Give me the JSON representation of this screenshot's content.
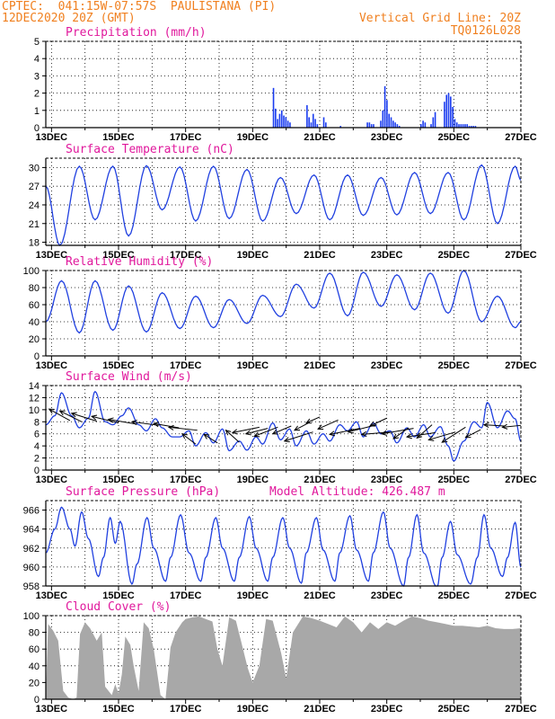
{
  "header": {
    "line1_left": "CPTEC:  041:15W-07:57S  PAULISTANA (PI)",
    "line2_left": "12DEC2020 20Z (GMT)",
    "line1_right": "Vertical Grid Line: 20Z",
    "line2_right": "TQ0126L028"
  },
  "colors": {
    "series": "#2040e0",
    "bar": "#1a3cf0",
    "cloud": "#a8a8a8",
    "title": "#e0189c",
    "header": "#f08020"
  },
  "x_axis": {
    "tick_labels": [
      "13DEC",
      "15DEC",
      "17DEC",
      "19DEC",
      "21DEC",
      "23DEC",
      "25DEC",
      "27DEC"
    ],
    "days_range": [
      12.83,
      27.0
    ]
  },
  "chart_data": [
    {
      "type": "bar",
      "title": "Precipitation (mm/h)",
      "ylim": [
        0,
        5
      ],
      "yticks": [
        "0",
        "1",
        "2",
        "3",
        "4",
        "5"
      ],
      "grid": true,
      "bursts": [
        {
          "x": 19.6,
          "values": [
            2.3,
            1.1,
            0.5,
            0.8,
            1.0,
            0.7,
            0.6,
            0.4,
            0.3
          ]
        },
        {
          "x": 20.6,
          "values": [
            1.3,
            0.6,
            0.3,
            0.8,
            0.5,
            0.2
          ]
        },
        {
          "x": 21.1,
          "values": [
            0.6,
            0.3
          ]
        },
        {
          "x": 21.6,
          "values": [
            0.1
          ]
        },
        {
          "x": 22.4,
          "values": [
            0.3,
            0.3,
            0.2,
            0.2
          ]
        },
        {
          "x": 22.8,
          "values": [
            0.4,
            1.0,
            2.4,
            1.6,
            0.8,
            0.6,
            0.4,
            0.3,
            0.2,
            0.1
          ]
        },
        {
          "x": 24.0,
          "values": [
            0.2,
            0.4,
            0.3
          ]
        },
        {
          "x": 24.3,
          "values": [
            0.2,
            0.6,
            0.9
          ]
        },
        {
          "x": 24.7,
          "values": [
            1.5,
            1.9,
            2.0,
            1.8,
            1.2,
            0.5,
            0.3,
            0.2,
            0.2,
            0.2,
            0.2,
            0.2,
            0.1,
            0.1,
            0.1,
            0.1
          ]
        }
      ]
    },
    {
      "type": "line",
      "title": "Surface Temperature (nC)",
      "ylim": [
        17.5,
        31.5
      ],
      "yticks": [
        "18",
        "21",
        "24",
        "27",
        "30"
      ],
      "grid": true,
      "extrema": [
        [
          12.83,
          27
        ],
        [
          13.25,
          17.5
        ],
        [
          13.83,
          30.2
        ],
        [
          14.3,
          21.6
        ],
        [
          14.83,
          30.2
        ],
        [
          15.3,
          19.0
        ],
        [
          15.83,
          30.3
        ],
        [
          16.3,
          23.2
        ],
        [
          16.83,
          30.1
        ],
        [
          17.3,
          21.4
        ],
        [
          17.83,
          30.2
        ],
        [
          18.3,
          21.8
        ],
        [
          18.83,
          29.7
        ],
        [
          19.3,
          21.4
        ],
        [
          19.83,
          28.4
        ],
        [
          20.3,
          22.6
        ],
        [
          20.83,
          28.8
        ],
        [
          21.3,
          21.6
        ],
        [
          21.83,
          28.8
        ],
        [
          22.3,
          22.3
        ],
        [
          22.83,
          28.4
        ],
        [
          23.3,
          22.4
        ],
        [
          23.83,
          29.2
        ],
        [
          24.3,
          22.6
        ],
        [
          24.83,
          29.2
        ],
        [
          25.3,
          21.6
        ],
        [
          25.83,
          30.4
        ],
        [
          26.3,
          21.0
        ],
        [
          26.83,
          30.2
        ],
        [
          27.0,
          28.0
        ]
      ]
    },
    {
      "type": "line",
      "title": "Relative Humidity (%)",
      "ylim": [
        0,
        100
      ],
      "yticks": [
        "0",
        "20",
        "40",
        "60",
        "80",
        "100"
      ],
      "grid": true,
      "extrema": [
        [
          12.83,
          40
        ],
        [
          13.3,
          88
        ],
        [
          13.83,
          27
        ],
        [
          14.3,
          88
        ],
        [
          14.83,
          30
        ],
        [
          15.3,
          82
        ],
        [
          15.83,
          28
        ],
        [
          16.3,
          74
        ],
        [
          16.83,
          32
        ],
        [
          17.3,
          70
        ],
        [
          17.83,
          33
        ],
        [
          18.3,
          66
        ],
        [
          18.83,
          38
        ],
        [
          19.3,
          71
        ],
        [
          19.83,
          46
        ],
        [
          20.3,
          84
        ],
        [
          20.83,
          56
        ],
        [
          21.3,
          97
        ],
        [
          21.83,
          47
        ],
        [
          22.3,
          98
        ],
        [
          22.83,
          58
        ],
        [
          23.3,
          95
        ],
        [
          23.83,
          54
        ],
        [
          24.3,
          97
        ],
        [
          24.83,
          50
        ],
        [
          25.3,
          100
        ],
        [
          25.83,
          40
        ],
        [
          26.3,
          70
        ],
        [
          26.83,
          33
        ],
        [
          27.0,
          40
        ]
      ]
    },
    {
      "type": "line",
      "title": "Surface Wind (m/s)",
      "ylim": [
        0,
        14
      ],
      "yticks": [
        "0",
        "2",
        "4",
        "6",
        "8",
        "10",
        "12",
        "14"
      ],
      "grid": true,
      "extrema": [
        [
          12.83,
          7.5
        ],
        [
          13.1,
          9
        ],
        [
          13.3,
          12.8
        ],
        [
          13.6,
          9
        ],
        [
          13.83,
          7
        ],
        [
          14.1,
          8.6
        ],
        [
          14.3,
          13
        ],
        [
          14.6,
          8
        ],
        [
          14.83,
          7.5
        ],
        [
          15.1,
          9
        ],
        [
          15.3,
          10.3
        ],
        [
          15.6,
          7.5
        ],
        [
          15.83,
          6.5
        ],
        [
          16.1,
          8.5
        ],
        [
          16.3,
          7
        ],
        [
          16.6,
          5.5
        ],
        [
          16.83,
          5.5
        ],
        [
          17.1,
          6.5
        ],
        [
          17.3,
          4
        ],
        [
          17.6,
          6.2
        ],
        [
          17.83,
          4.5
        ],
        [
          18.1,
          6.8
        ],
        [
          18.3,
          3.2
        ],
        [
          18.6,
          4.8
        ],
        [
          18.83,
          3.3
        ],
        [
          19.1,
          5.5
        ],
        [
          19.3,
          4.3
        ],
        [
          19.6,
          7.8
        ],
        [
          19.83,
          5
        ],
        [
          20.1,
          6.8
        ],
        [
          20.3,
          4
        ],
        [
          20.6,
          6.5
        ],
        [
          20.83,
          4.3
        ],
        [
          21.1,
          6
        ],
        [
          21.3,
          4.8
        ],
        [
          21.6,
          7.5
        ],
        [
          21.83,
          6.5
        ],
        [
          22.1,
          8
        ],
        [
          22.3,
          5.5
        ],
        [
          22.6,
          7.8
        ],
        [
          22.83,
          6
        ],
        [
          23.1,
          6.5
        ],
        [
          23.3,
          4.5
        ],
        [
          23.6,
          7
        ],
        [
          23.83,
          5.5
        ],
        [
          24.1,
          7.5
        ],
        [
          24.3,
          5.5
        ],
        [
          24.6,
          7.2
        ],
        [
          24.83,
          4
        ],
        [
          25.0,
          1.5
        ],
        [
          25.3,
          4.8
        ],
        [
          25.6,
          8
        ],
        [
          25.83,
          7
        ],
        [
          26.0,
          11.2
        ],
        [
          26.3,
          7
        ],
        [
          26.6,
          9.8
        ],
        [
          26.83,
          8.5
        ],
        [
          27.0,
          4.8
        ]
      ],
      "arrows": [
        [
          12.93,
          10.1,
          13.55,
          8.2
        ],
        [
          13.25,
          9.8,
          13.9,
          8.0
        ],
        [
          13.6,
          9.4,
          14.35,
          8.1
        ],
        [
          14.2,
          8.9,
          15.0,
          7.8
        ],
        [
          14.7,
          8.4,
          15.55,
          7.6
        ],
        [
          15.4,
          8.0,
          16.2,
          7.4
        ],
        [
          16.05,
          7.7,
          16.8,
          7.0
        ],
        [
          16.5,
          7.1,
          17.35,
          6.6
        ],
        [
          16.9,
          6.0,
          17.3,
          4.3
        ],
        [
          17.55,
          5.9,
          17.95,
          4.5
        ],
        [
          18.2,
          6.6,
          18.6,
          4.6
        ],
        [
          18.4,
          6.2,
          19.2,
          7.1
        ],
        [
          18.8,
          6.0,
          19.45,
          6.9
        ],
        [
          19.05,
          5.6,
          19.75,
          7.1
        ],
        [
          19.6,
          6.0,
          20.15,
          7.3
        ],
        [
          19.95,
          4.8,
          20.8,
          6.3
        ],
        [
          20.25,
          6.6,
          20.7,
          7.9
        ],
        [
          20.6,
          7.8,
          21.0,
          8.8
        ],
        [
          20.95,
          6.8,
          21.55,
          8.3
        ],
        [
          21.3,
          5.9,
          22.2,
          6.9
        ],
        [
          21.85,
          6.3,
          22.7,
          7.5
        ],
        [
          22.25,
          5.9,
          23.1,
          6.3
        ],
        [
          22.5,
          7.3,
          23.0,
          8.6
        ],
        [
          22.85,
          6.0,
          23.8,
          6.9
        ],
        [
          23.2,
          5.2,
          23.65,
          7.0
        ],
        [
          23.6,
          5.5,
          24.45,
          6.2
        ],
        [
          23.9,
          5.3,
          24.35,
          7.5
        ],
        [
          24.25,
          5.0,
          25.05,
          6.3
        ],
        [
          24.65,
          4.6,
          25.35,
          7.1
        ],
        [
          25.35,
          5.4,
          25.8,
          6.7
        ],
        [
          25.9,
          7.5,
          26.5,
          7.3
        ],
        [
          26.45,
          7.1,
          27.0,
          7.4
        ]
      ]
    },
    {
      "type": "line",
      "title": "Surface Pressure (hPa)",
      "annotation": "Model Altitude: 426.487 m",
      "ylim": [
        958,
        967
      ],
      "yticks": [
        "958",
        "960",
        "962",
        "964",
        "966"
      ],
      "grid": true,
      "extrema": [
        [
          12.83,
          961.5
        ],
        [
          13.1,
          964
        ],
        [
          13.3,
          966.3
        ],
        [
          13.55,
          964
        ],
        [
          13.7,
          962.2
        ],
        [
          13.9,
          965.8
        ],
        [
          14.1,
          963
        ],
        [
          14.4,
          959
        ],
        [
          14.55,
          961
        ],
        [
          14.75,
          965.2
        ],
        [
          14.9,
          962.5
        ],
        [
          15.05,
          964.8
        ],
        [
          15.4,
          958.2
        ],
        [
          15.55,
          960.3
        ],
        [
          15.85,
          965.2
        ],
        [
          16.05,
          962
        ],
        [
          16.4,
          958.5
        ],
        [
          16.55,
          961
        ],
        [
          16.85,
          965.5
        ],
        [
          17.1,
          961.5
        ],
        [
          17.45,
          958.5
        ],
        [
          17.6,
          961
        ],
        [
          17.9,
          965.2
        ],
        [
          18.1,
          962
        ],
        [
          18.45,
          958.5
        ],
        [
          18.6,
          961
        ],
        [
          18.9,
          965.3
        ],
        [
          19.1,
          962
        ],
        [
          19.45,
          958.5
        ],
        [
          19.6,
          961
        ],
        [
          19.9,
          965.2
        ],
        [
          20.1,
          962
        ],
        [
          20.45,
          958.3
        ],
        [
          20.6,
          961.5
        ],
        [
          20.9,
          965.2
        ],
        [
          21.1,
          961.8
        ],
        [
          21.45,
          958.5
        ],
        [
          21.6,
          961.5
        ],
        [
          21.9,
          965.4
        ],
        [
          22.1,
          961.8
        ],
        [
          22.45,
          958.5
        ],
        [
          22.6,
          961.5
        ],
        [
          22.9,
          965.8
        ],
        [
          23.1,
          962
        ],
        [
          23.5,
          958
        ],
        [
          23.65,
          961
        ],
        [
          23.9,
          965.5
        ],
        [
          24.1,
          961.5
        ],
        [
          24.5,
          957.8
        ],
        [
          24.65,
          961
        ],
        [
          24.9,
          964.8
        ],
        [
          25.1,
          961.3
        ],
        [
          25.5,
          958.2
        ],
        [
          25.7,
          961
        ],
        [
          25.9,
          965.5
        ],
        [
          26.1,
          962
        ],
        [
          26.45,
          959
        ],
        [
          26.6,
          961
        ],
        [
          26.83,
          964.7
        ],
        [
          27.0,
          960
        ]
      ]
    },
    {
      "type": "area",
      "title": "Cloud Cover (%)",
      "ylim": [
        0,
        100
      ],
      "yticks": [
        "0",
        "20",
        "40",
        "60",
        "80",
        "100"
      ],
      "grid": true,
      "points": [
        [
          12.83,
          0
        ],
        [
          12.9,
          90
        ],
        [
          13.05,
          82
        ],
        [
          13.2,
          70
        ],
        [
          13.35,
          10
        ],
        [
          13.5,
          2
        ],
        [
          13.65,
          0
        ],
        [
          13.75,
          2
        ],
        [
          13.85,
          78
        ],
        [
          14.0,
          92
        ],
        [
          14.15,
          85
        ],
        [
          14.35,
          70
        ],
        [
          14.5,
          80
        ],
        [
          14.6,
          15
        ],
        [
          14.8,
          5
        ],
        [
          14.9,
          18
        ],
        [
          15.0,
          7
        ],
        [
          15.1,
          30
        ],
        [
          15.2,
          75
        ],
        [
          15.35,
          65
        ],
        [
          15.45,
          40
        ],
        [
          15.6,
          10
        ],
        [
          15.75,
          92
        ],
        [
          15.9,
          85
        ],
        [
          16.05,
          60
        ],
        [
          16.25,
          5
        ],
        [
          16.4,
          0
        ],
        [
          16.55,
          62
        ],
        [
          16.7,
          80
        ],
        [
          16.9,
          92
        ],
        [
          17.0,
          96
        ],
        [
          17.2,
          98
        ],
        [
          17.4,
          99
        ],
        [
          17.6,
          96
        ],
        [
          17.8,
          93
        ],
        [
          17.95,
          60
        ],
        [
          18.1,
          40
        ],
        [
          18.3,
          98
        ],
        [
          18.5,
          94
        ],
        [
          18.65,
          70
        ],
        [
          18.85,
          38
        ],
        [
          19.0,
          20
        ],
        [
          19.2,
          40
        ],
        [
          19.4,
          96
        ],
        [
          19.6,
          94
        ],
        [
          19.85,
          55
        ],
        [
          20.0,
          25
        ],
        [
          20.2,
          80
        ],
        [
          20.5,
          99
        ],
        [
          20.75,
          97
        ],
        [
          21.0,
          94
        ],
        [
          21.25,
          90
        ],
        [
          21.5,
          86
        ],
        [
          21.75,
          99
        ],
        [
          22.0,
          92
        ],
        [
          22.25,
          80
        ],
        [
          22.5,
          92
        ],
        [
          22.75,
          84
        ],
        [
          23.0,
          92
        ],
        [
          23.25,
          88
        ],
        [
          23.5,
          94
        ],
        [
          23.75,
          99
        ],
        [
          24.0,
          97
        ],
        [
          24.25,
          94
        ],
        [
          24.5,
          92
        ],
        [
          24.75,
          90
        ],
        [
          25.0,
          88
        ],
        [
          25.25,
          88
        ],
        [
          25.5,
          87
        ],
        [
          25.75,
          86
        ],
        [
          26.0,
          88
        ],
        [
          26.25,
          85
        ],
        [
          26.5,
          84
        ],
        [
          26.75,
          84
        ],
        [
          27.0,
          85
        ]
      ]
    }
  ]
}
